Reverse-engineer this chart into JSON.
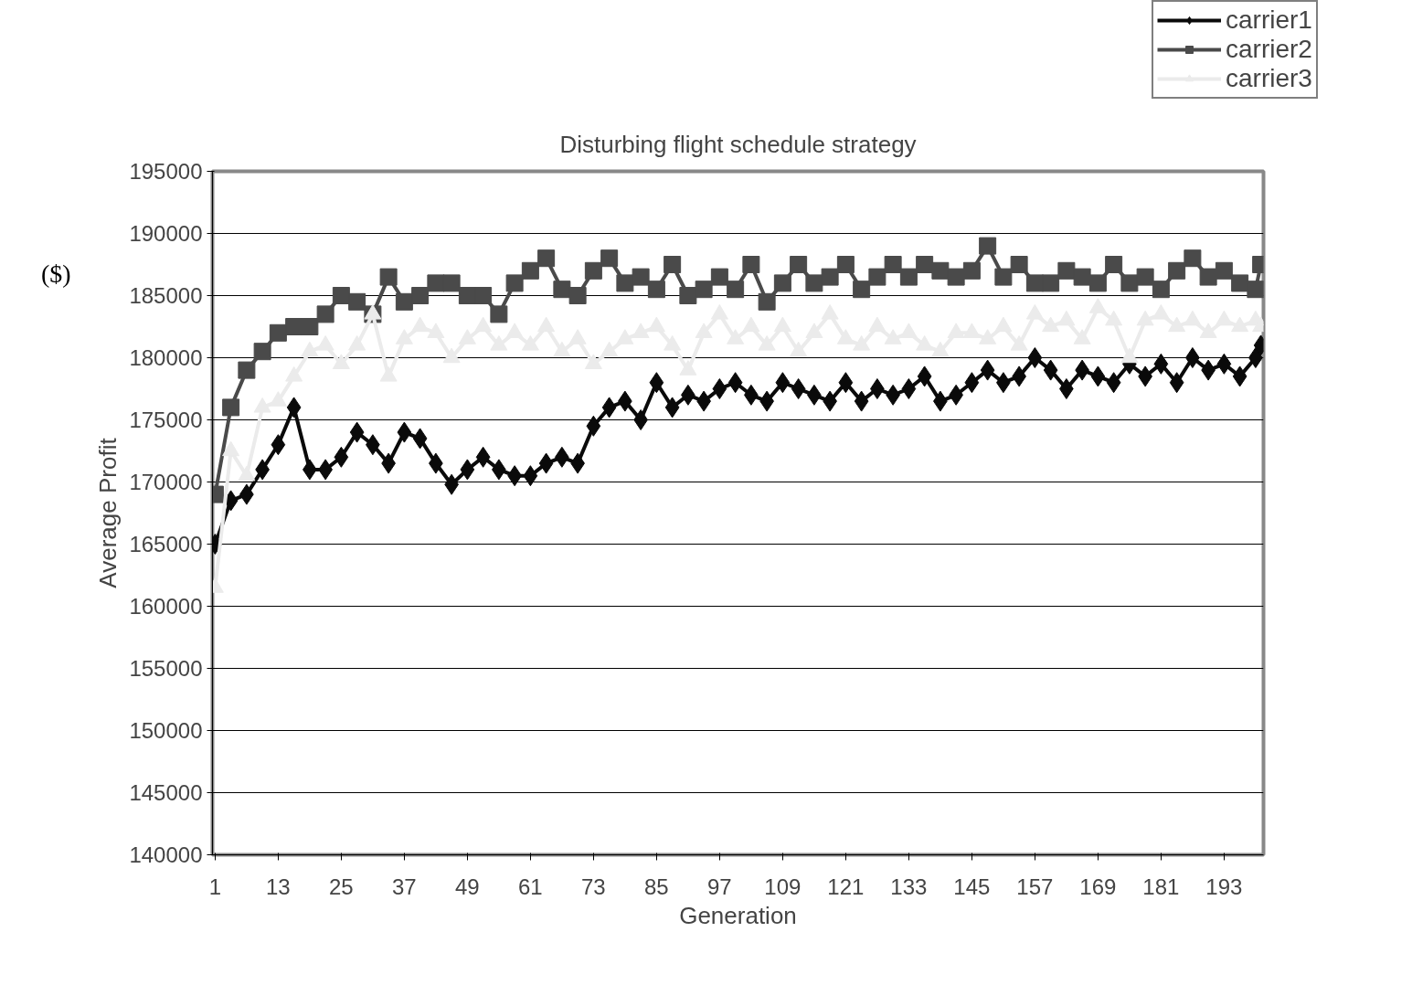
{
  "chart_data": {
    "type": "line",
    "title": "Disturbing flight schedule strategy",
    "xlabel": "Generation",
    "ylabel": "Average Profit",
    "annotations": [
      "($)"
    ],
    "x": [
      1,
      4,
      7,
      10,
      13,
      16,
      19,
      22,
      25,
      28,
      31,
      34,
      37,
      40,
      43,
      46,
      49,
      52,
      55,
      58,
      61,
      64,
      67,
      70,
      73,
      76,
      79,
      82,
      85,
      88,
      91,
      94,
      97,
      100,
      103,
      106,
      109,
      112,
      115,
      118,
      121,
      124,
      127,
      130,
      133,
      136,
      139,
      142,
      145,
      148,
      151,
      154,
      157,
      160,
      163,
      166,
      169,
      172,
      175,
      178,
      181,
      184,
      187,
      190,
      193,
      196,
      199,
      200
    ],
    "xlim": [
      0.5,
      200.5
    ],
    "xticks": [
      1,
      13,
      25,
      37,
      49,
      61,
      73,
      85,
      97,
      109,
      121,
      133,
      145,
      157,
      169,
      181,
      193
    ],
    "ylim": [
      140000,
      195000
    ],
    "yticks": [
      140000,
      145000,
      150000,
      155000,
      160000,
      165000,
      170000,
      175000,
      180000,
      185000,
      190000,
      195000
    ],
    "grid": "y",
    "legend": "top right",
    "line_style": "solid",
    "series": [
      {
        "name": "carrier1",
        "color": "#0a0a0a",
        "marker": "diamond",
        "values": [
          165000,
          168500,
          169000,
          171000,
          173000,
          176000,
          171000,
          171000,
          172000,
          174000,
          173000,
          171500,
          174000,
          173500,
          171500,
          169800,
          171000,
          172000,
          171000,
          170500,
          170500,
          171500,
          172000,
          171500,
          174500,
          176000,
          176500,
          175000,
          178000,
          176000,
          177000,
          176500,
          177500,
          178000,
          177000,
          176500,
          178000,
          177500,
          177000,
          176500,
          178000,
          176500,
          177500,
          177000,
          177500,
          178500,
          176500,
          177000,
          178000,
          179000,
          178000,
          178500,
          180000,
          179000,
          177500,
          179000,
          178500,
          178000,
          179500,
          178500,
          179500,
          178000,
          180000,
          179000,
          179500,
          178500,
          180000,
          181000
        ]
      },
      {
        "name": "carrier2",
        "color": "#4a4a4a",
        "marker": "square",
        "values": [
          169000,
          176000,
          179000,
          180500,
          182000,
          182500,
          182500,
          183500,
          185000,
          184500,
          183500,
          186500,
          184500,
          185000,
          186000,
          186000,
          185000,
          185000,
          183500,
          186000,
          187000,
          188000,
          185500,
          185000,
          187000,
          188000,
          186000,
          186500,
          185500,
          187500,
          185000,
          185500,
          186500,
          185500,
          187500,
          184500,
          186000,
          187500,
          186000,
          186500,
          187500,
          185500,
          186500,
          187500,
          186500,
          187500,
          187000,
          186500,
          187000,
          189000,
          186500,
          187500,
          186000,
          186000,
          187000,
          186500,
          186000,
          187500,
          186000,
          186500,
          185500,
          187000,
          188000,
          186500,
          187000,
          186000,
          185500,
          187500
        ]
      },
      {
        "name": "carrier3",
        "color": "#ebebeb",
        "marker": "triangle",
        "values": [
          161500,
          172500,
          170500,
          176000,
          176500,
          178500,
          180500,
          181000,
          179500,
          181000,
          183500,
          178500,
          181500,
          182500,
          182000,
          180000,
          181500,
          182500,
          181000,
          182000,
          181000,
          182500,
          180500,
          181500,
          179500,
          180500,
          181500,
          182000,
          182500,
          181000,
          179000,
          182000,
          183500,
          181500,
          182500,
          181000,
          182500,
          180500,
          182000,
          183500,
          181500,
          181000,
          182500,
          181500,
          182000,
          181000,
          180500,
          182000,
          182000,
          181500,
          182500,
          181000,
          183500,
          182500,
          183000,
          181500,
          184000,
          183000,
          180000,
          183000,
          183500,
          182500,
          183000,
          182000,
          183000,
          182500,
          183000,
          182500
        ]
      }
    ]
  }
}
